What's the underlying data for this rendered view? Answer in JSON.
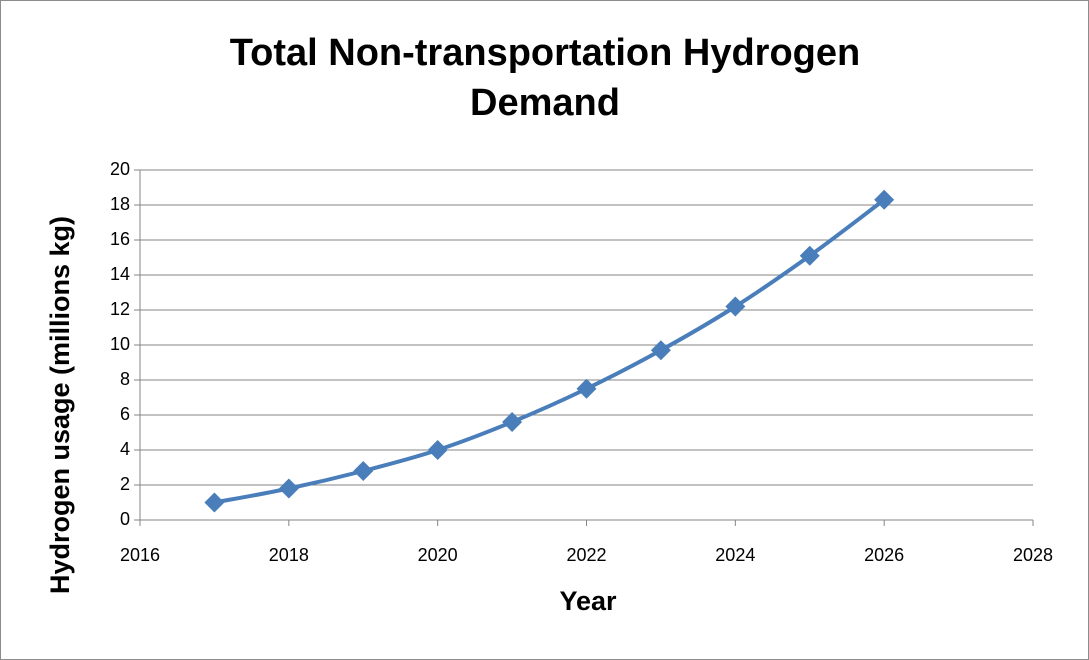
{
  "chart_data": {
    "type": "line",
    "title": "Total Non-transportation Hydrogen Demand",
    "x_label": "Year",
    "y_label": "Hydrogen usage (millions kg)",
    "x": [
      2017,
      2018,
      2019,
      2020,
      2021,
      2022,
      2023,
      2024,
      2025,
      2026
    ],
    "series": [
      {
        "color": "#4a7ebb",
        "values": [
          1.0,
          1.8,
          2.8,
          4.0,
          5.6,
          7.5,
          9.7,
          12.2,
          15.1,
          18.3
        ]
      }
    ],
    "xlim": [
      2016,
      2028
    ],
    "xticks": [
      2016,
      2018,
      2020,
      2022,
      2024,
      2026,
      2028
    ],
    "ylim": [
      0,
      20
    ],
    "yticks": [
      0,
      2,
      4,
      6,
      8,
      10,
      12,
      14,
      16,
      18,
      20
    ],
    "grid": true,
    "marker": "diamond"
  }
}
